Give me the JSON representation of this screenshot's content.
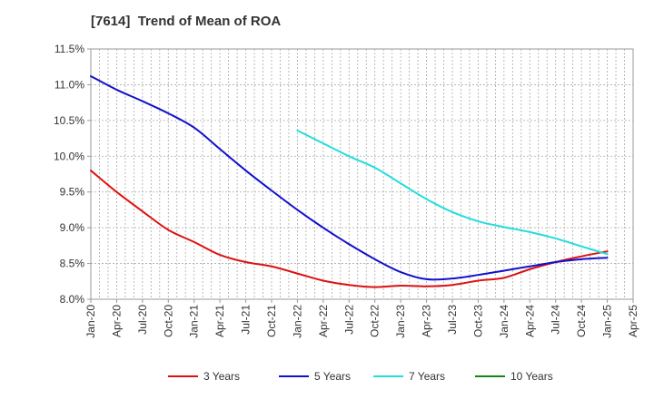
{
  "chart_data": {
    "type": "line",
    "title": "[7614]  Trend of Mean of ROA",
    "xlabel": "",
    "ylabel": "",
    "ylim": [
      8.0,
      11.5
    ],
    "grid": true,
    "legend_position": "bottom",
    "y_ticks": [
      "8.0%",
      "8.5%",
      "9.0%",
      "9.5%",
      "10.0%",
      "10.5%",
      "11.0%",
      "11.5%"
    ],
    "y_tick_values": [
      8.0,
      8.5,
      9.0,
      9.5,
      10.0,
      10.5,
      11.0,
      11.5
    ],
    "x_ticks": [
      "Jan-20",
      "Apr-20",
      "Jul-20",
      "Oct-20",
      "Jan-21",
      "Apr-21",
      "Jul-21",
      "Oct-21",
      "Jan-22",
      "Apr-22",
      "Jul-22",
      "Oct-22",
      "Jan-23",
      "Apr-23",
      "Jul-23",
      "Oct-23",
      "Jan-24",
      "Apr-24",
      "Jul-24",
      "Oct-24",
      "Jan-25",
      "Apr-25"
    ],
    "x_tick_months": [
      0,
      3,
      6,
      9,
      12,
      15,
      18,
      21,
      24,
      27,
      30,
      33,
      36,
      39,
      42,
      45,
      48,
      51,
      54,
      57,
      60,
      63
    ],
    "series": [
      {
        "name": "3 Years",
        "color": "#dd1111",
        "x": [
          0,
          3,
          6,
          9,
          12,
          15,
          18,
          21,
          24,
          27,
          30,
          33,
          36,
          39,
          42,
          45,
          48,
          51,
          54,
          57,
          60
        ],
        "values": [
          9.8,
          9.5,
          9.23,
          8.97,
          8.8,
          8.62,
          8.52,
          8.46,
          8.36,
          8.26,
          8.2,
          8.17,
          8.19,
          8.18,
          8.2,
          8.26,
          8.3,
          8.42,
          8.52,
          8.6,
          8.67
        ]
      },
      {
        "name": "5 Years",
        "color": "#1111cc",
        "x": [
          0,
          3,
          6,
          9,
          12,
          15,
          18,
          21,
          24,
          27,
          30,
          33,
          36,
          39,
          42,
          45,
          48,
          51,
          54,
          57,
          60
        ],
        "values": [
          11.12,
          10.93,
          10.77,
          10.6,
          10.4,
          10.1,
          9.8,
          9.52,
          9.25,
          9.0,
          8.77,
          8.56,
          8.38,
          8.28,
          8.29,
          8.34,
          8.4,
          8.46,
          8.52,
          8.56,
          8.58
        ]
      },
      {
        "name": "7 Years",
        "color": "#22dddd",
        "x": [
          24,
          27,
          30,
          33,
          36,
          39,
          42,
          45,
          48,
          51,
          54,
          57,
          60
        ],
        "values": [
          10.36,
          10.18,
          10.0,
          9.84,
          9.62,
          9.4,
          9.22,
          9.09,
          9.01,
          8.94,
          8.85,
          8.74,
          8.63
        ]
      },
      {
        "name": "10 Years",
        "color": "#118811",
        "x": [],
        "values": []
      }
    ]
  }
}
